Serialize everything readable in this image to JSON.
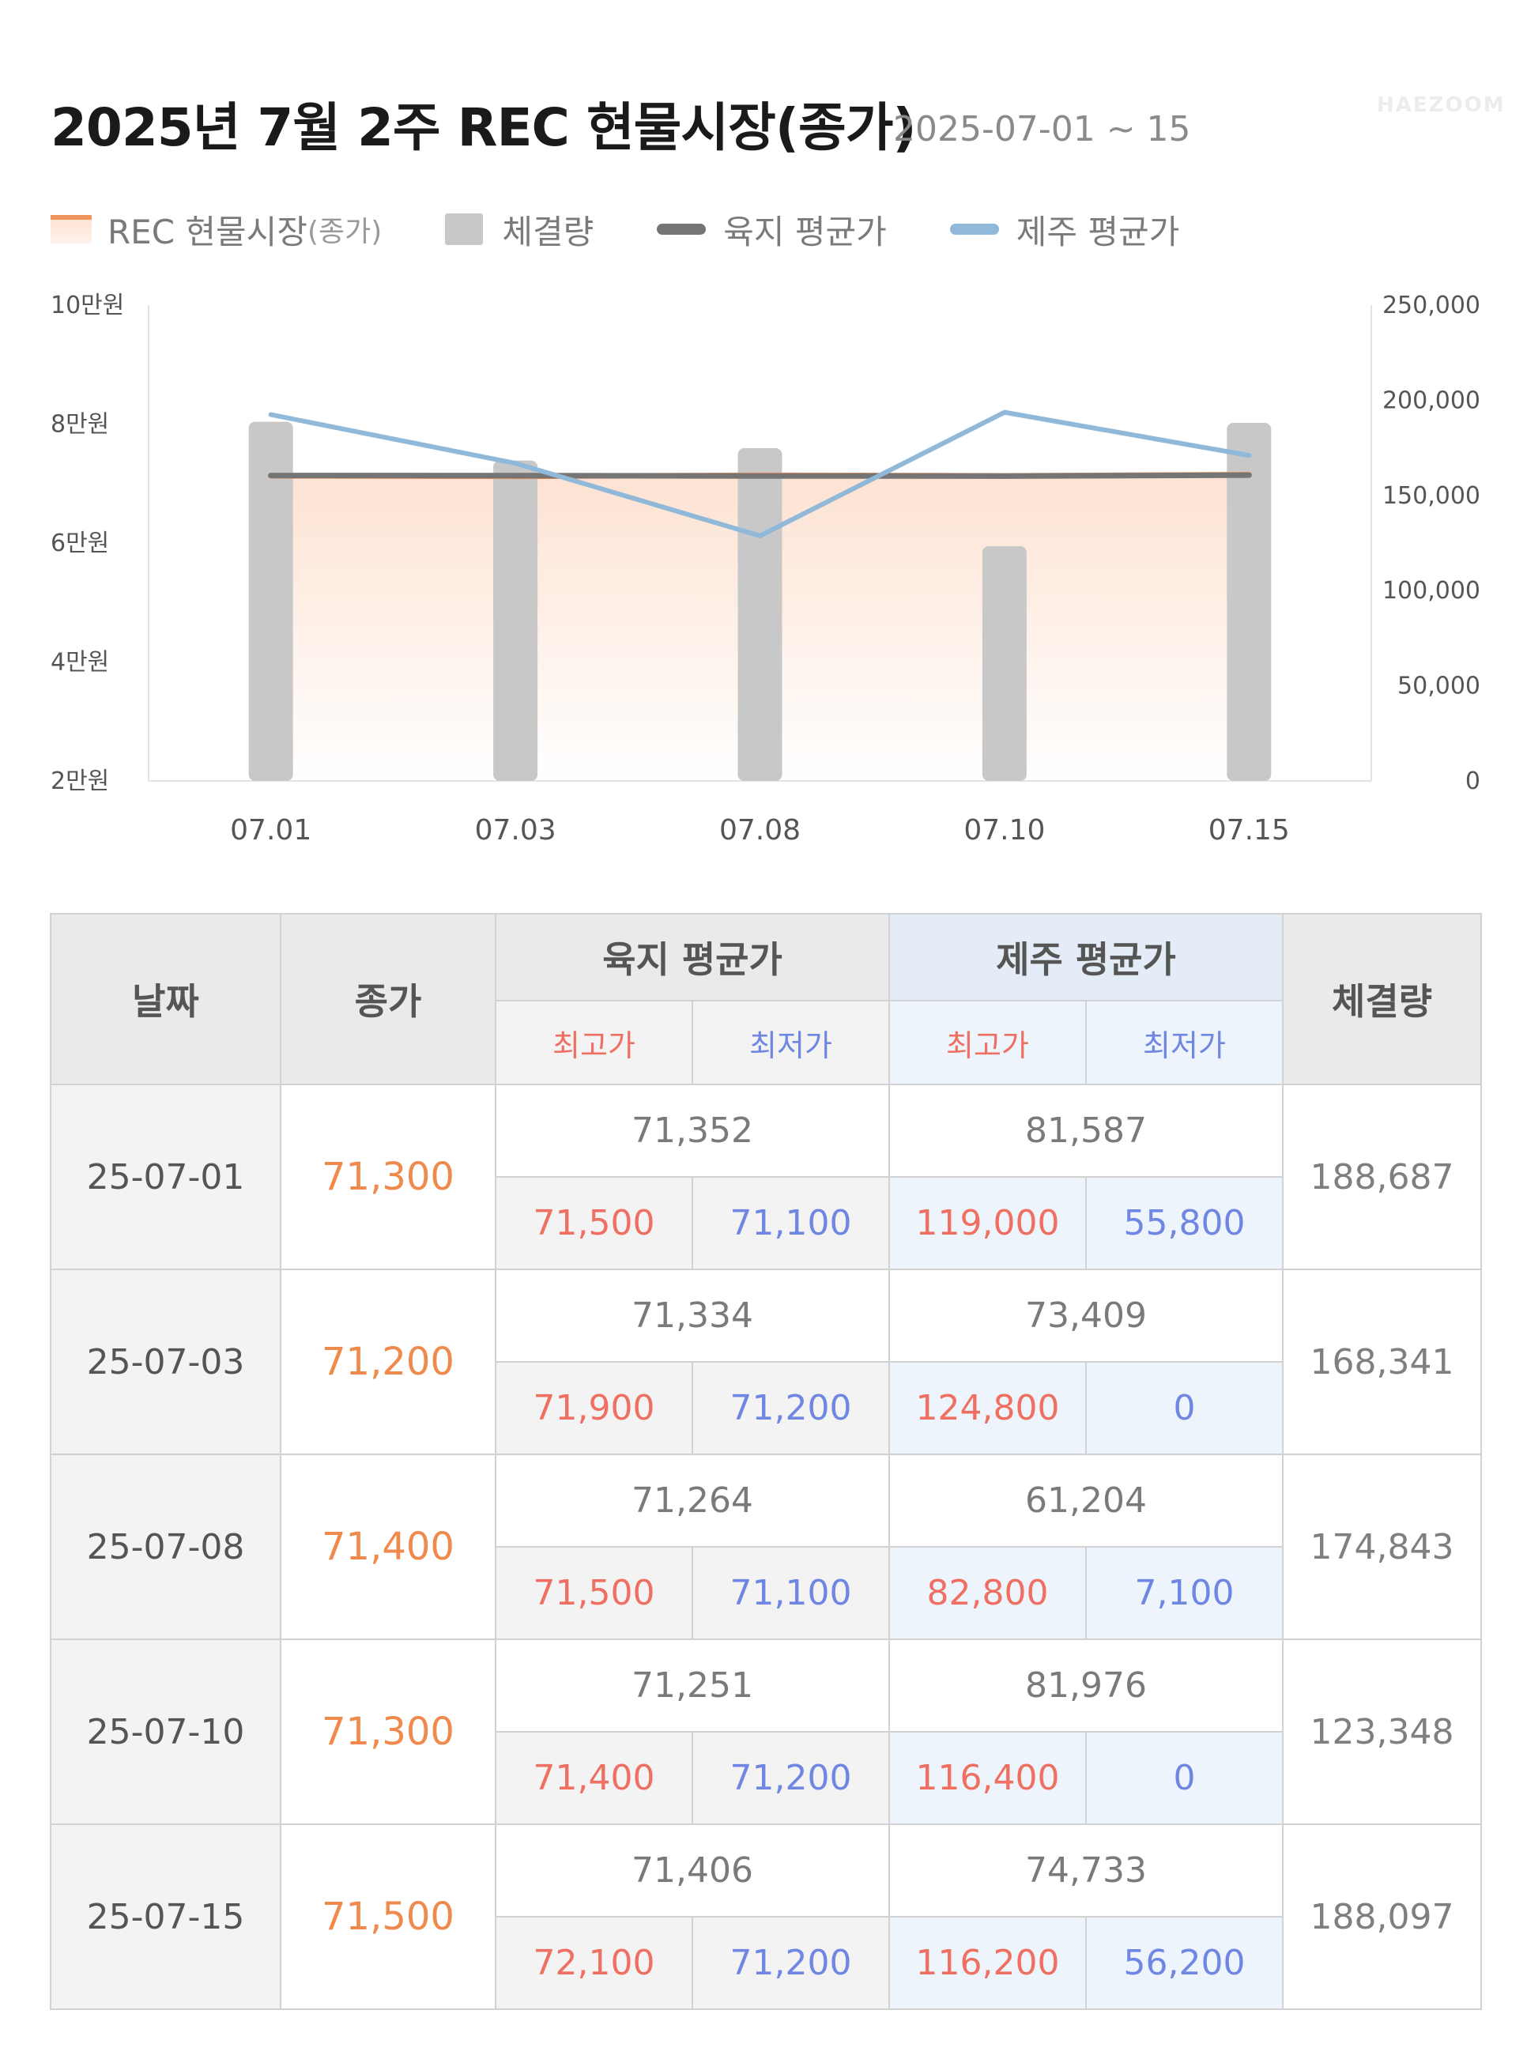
{
  "header": {
    "title": "2025년 7월 2주 REC 현물시장(종가)",
    "date_range": "2025-07-01 ~ 15",
    "watermark": "HAEZOOM"
  },
  "legend": {
    "rec_label": "REC 현물시장",
    "rec_sub": "(종가)",
    "volume_label": "체결량",
    "mainland_label": "육지 평균가",
    "jeju_label": "제주 평균가"
  },
  "colors": {
    "rec_line": "#f0955b",
    "rec_fill": "#fde1d0",
    "volume_bar": "#c8c8c8",
    "mainland_line": "#757575",
    "jeju_line": "#8fb8d9",
    "high_text": "#ef6f62",
    "low_text": "#6f86e3",
    "close_text": "#ef8a4c"
  },
  "chart_data": {
    "type": "bar",
    "categories": [
      "07.01",
      "07.03",
      "07.08",
      "07.10",
      "07.15"
    ],
    "y_left_ticks": [
      "2만원",
      "4만원",
      "6만원",
      "8만원",
      "10만원"
    ],
    "y_left_range": [
      20000,
      100000
    ],
    "y_right_ticks": [
      "0",
      "50,000",
      "100,000",
      "150,000",
      "200,000",
      "250,000"
    ],
    "y_right_range": [
      0,
      250000
    ],
    "series": [
      {
        "name": "체결량",
        "kind": "bar",
        "axis": "right",
        "values": [
          188687,
          168341,
          174843,
          123348,
          188097
        ]
      },
      {
        "name": "REC 현물시장(종가)",
        "kind": "area",
        "axis": "left",
        "values": [
          71300,
          71200,
          71400,
          71300,
          71500
        ]
      },
      {
        "name": "육지 평균가",
        "kind": "line",
        "axis": "left",
        "values": [
          71352,
          71334,
          71264,
          71251,
          71406
        ]
      },
      {
        "name": "제주 평균가",
        "kind": "line",
        "axis": "left",
        "values": [
          81587,
          73409,
          61204,
          81976,
          74733
        ]
      }
    ]
  },
  "table": {
    "headers": {
      "date": "날짜",
      "close": "종가",
      "mainland": "육지 평균가",
      "jeju": "제주 평균가",
      "volume": "체결량",
      "high": "최고가",
      "low": "최저가"
    },
    "rows": [
      {
        "date": "25-07-01",
        "close": "71,300",
        "mainland_avg": "71,352",
        "mainland_high": "71,500",
        "mainland_low": "71,100",
        "jeju_avg": "81,587",
        "jeju_high": "119,000",
        "jeju_low": "55,800",
        "volume": "188,687"
      },
      {
        "date": "25-07-03",
        "close": "71,200",
        "mainland_avg": "71,334",
        "mainland_high": "71,900",
        "mainland_low": "71,200",
        "jeju_avg": "73,409",
        "jeju_high": "124,800",
        "jeju_low": "0",
        "volume": "168,341"
      },
      {
        "date": "25-07-08",
        "close": "71,400",
        "mainland_avg": "71,264",
        "mainland_high": "71,500",
        "mainland_low": "71,100",
        "jeju_avg": "61,204",
        "jeju_high": "82,800",
        "jeju_low": "7,100",
        "volume": "174,843"
      },
      {
        "date": "25-07-10",
        "close": "71,300",
        "mainland_avg": "71,251",
        "mainland_high": "71,400",
        "mainland_low": "71,200",
        "jeju_avg": "81,976",
        "jeju_high": "116,400",
        "jeju_low": "0",
        "volume": "123,348"
      },
      {
        "date": "25-07-15",
        "close": "71,500",
        "mainland_avg": "71,406",
        "mainland_high": "72,100",
        "mainland_low": "71,200",
        "jeju_avg": "74,733",
        "jeju_high": "116,200",
        "jeju_low": "56,200",
        "volume": "188,097"
      }
    ]
  }
}
